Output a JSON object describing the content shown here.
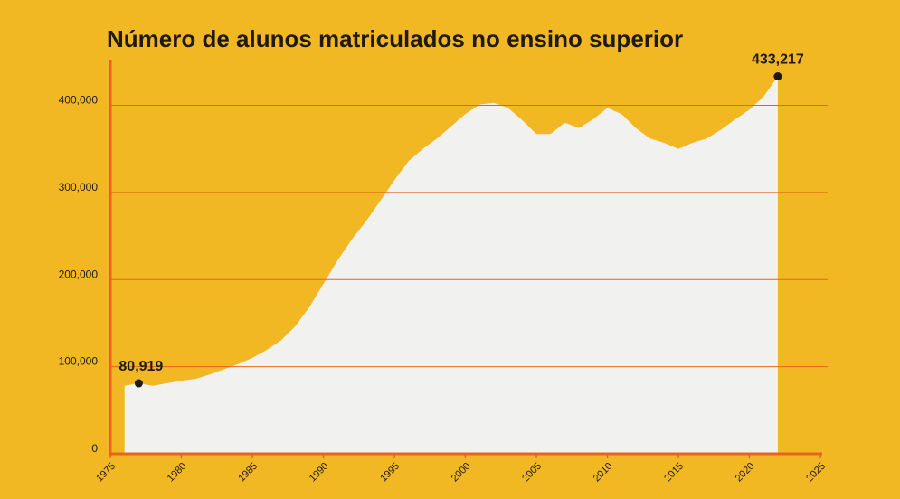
{
  "chart_data": {
    "type": "area",
    "title": "Número de alunos matriculados no ensino superior",
    "xlabel": "",
    "ylabel": "",
    "xlim": [
      1975,
      2025
    ],
    "ylim": [
      0,
      440000
    ],
    "x_ticks": [
      1975,
      1980,
      1985,
      1990,
      1995,
      2000,
      2005,
      2010,
      2015,
      2020,
      2025
    ],
    "y_ticks": [
      0,
      100000,
      200000,
      300000,
      400000
    ],
    "y_tick_labels": [
      "0",
      "100,000",
      "200,000",
      "300,000",
      "400,000"
    ],
    "grid": "horizontal",
    "colors": {
      "background": "#F2B824",
      "area": "#F1F1EF",
      "axis": "#E8641E",
      "grid": "#E8641E",
      "text": "#1f1a14"
    },
    "x": [
      1976,
      1977,
      1978,
      1979,
      1980,
      1981,
      1982,
      1983,
      1984,
      1985,
      1986,
      1987,
      1988,
      1989,
      1990,
      1991,
      1992,
      1993,
      1994,
      1995,
      1996,
      1997,
      1998,
      1999,
      2000,
      2001,
      2002,
      2003,
      2004,
      2005,
      2006,
      2007,
      2008,
      2009,
      2010,
      2011,
      2012,
      2013,
      2014,
      2015,
      2016,
      2017,
      2018,
      2019,
      2020,
      2021,
      2022
    ],
    "values": [
      78000,
      80919,
      78000,
      81000,
      84000,
      86000,
      91000,
      97000,
      103000,
      110000,
      119000,
      130000,
      146000,
      168000,
      195000,
      222000,
      246000,
      267000,
      290000,
      314000,
      336000,
      350000,
      362000,
      376000,
      390000,
      401000,
      403000,
      397000,
      383000,
      367000,
      367000,
      380000,
      374000,
      384000,
      397000,
      390000,
      374000,
      362000,
      357000,
      350000,
      357000,
      362000,
      372000,
      384000,
      395000,
      410000,
      433217
    ],
    "annotations": [
      {
        "label": "80,919",
        "x": 1977,
        "y": 80919
      },
      {
        "label": "433,217",
        "x": 2022,
        "y": 433217
      }
    ]
  }
}
